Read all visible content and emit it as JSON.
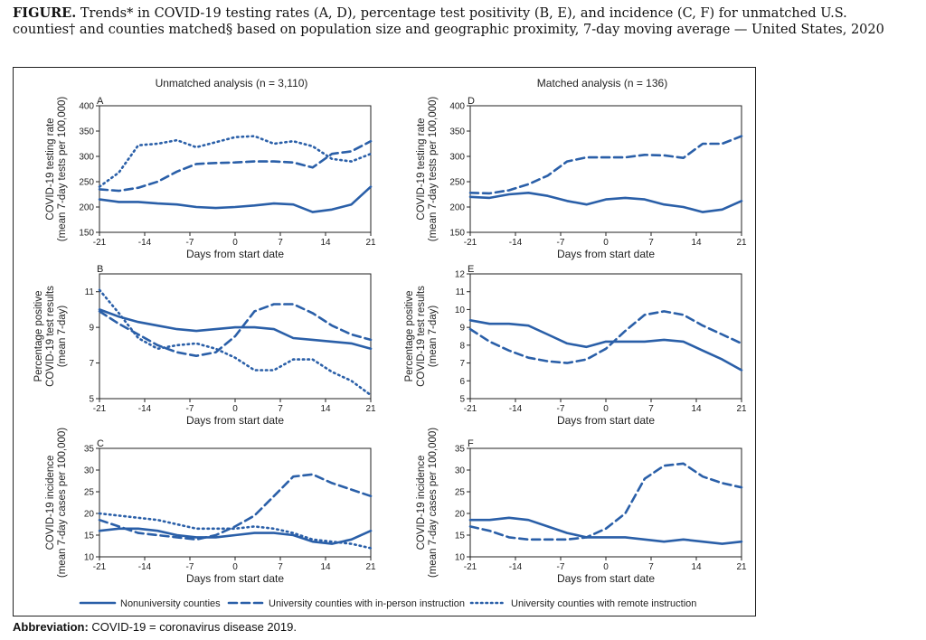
{
  "caption": {
    "lead": "FIGURE.",
    "text": "Trends* in COVID-19 testing rates (A, D), percentage test positivity (B, E), and incidence (C, F) for unmatched U.S. counties† and counties matched§ based on population size and geographic proximity, 7-day moving average — United States, 2020"
  },
  "footnote": {
    "label": "Abbreviation:",
    "text": "COVID-19 = coronavirus disease 2019."
  },
  "colors": {
    "line": "#2a5fa8",
    "axis": "#222222"
  },
  "column_titles": [
    "Unmatched analysis (n = 3,110)",
    "Matched analysis (n = 136)"
  ],
  "legend": [
    {
      "label": "Nonuniversity counties",
      "style": "solid"
    },
    {
      "label": "University counties with in-person instruction",
      "style": "dashed"
    },
    {
      "label": "University counties with remote instruction",
      "style": "dotted"
    }
  ],
  "chart_data": [
    {
      "panel": "A",
      "type": "line",
      "ylabel": [
        "COVID-19 testing rate",
        "(mean 7-day tests per 100,000)"
      ],
      "xlabel": "Days from start date",
      "xlim": [
        -21,
        21
      ],
      "xticks": [
        -21,
        -14,
        -7,
        0,
        7,
        14,
        21
      ],
      "ylim": [
        150,
        400
      ],
      "yticks": [
        150,
        200,
        250,
        300,
        350,
        400
      ],
      "x": [
        -21,
        -18,
        -15,
        -12,
        -9,
        -6,
        -3,
        0,
        3,
        6,
        9,
        12,
        15,
        18,
        21
      ],
      "series": [
        {
          "name": "Nonuniversity counties",
          "style": "solid",
          "values": [
            215,
            210,
            210,
            207,
            205,
            200,
            198,
            200,
            203,
            207,
            205,
            190,
            195,
            205,
            240
          ]
        },
        {
          "name": "University counties with in-person instruction",
          "style": "dashed",
          "values": [
            235,
            232,
            238,
            250,
            270,
            285,
            287,
            288,
            290,
            290,
            288,
            278,
            305,
            310,
            330
          ]
        },
        {
          "name": "University counties with remote instruction",
          "style": "dotted",
          "values": [
            240,
            268,
            322,
            325,
            332,
            318,
            328,
            338,
            340,
            325,
            330,
            320,
            295,
            290,
            305
          ]
        }
      ]
    },
    {
      "panel": "B",
      "type": "line",
      "ylabel": [
        "Percentage positive",
        "COVID-19 test results",
        "(mean 7-day)"
      ],
      "xlabel": "Days from start date",
      "xlim": [
        -21,
        21
      ],
      "xticks": [
        -21,
        -14,
        -7,
        0,
        7,
        14,
        21
      ],
      "ylim": [
        5,
        12
      ],
      "yticks": [
        5,
        7,
        9,
        11
      ],
      "x": [
        -21,
        -18,
        -15,
        -12,
        -9,
        -6,
        -3,
        0,
        3,
        6,
        9,
        12,
        15,
        18,
        21
      ],
      "series": [
        {
          "name": "Nonuniversity counties",
          "style": "solid",
          "values": [
            10.0,
            9.6,
            9.3,
            9.1,
            8.9,
            8.8,
            8.9,
            9.0,
            9.0,
            8.9,
            8.4,
            8.3,
            8.2,
            8.1,
            7.8
          ]
        },
        {
          "name": "University counties with in-person instruction",
          "style": "dashed",
          "values": [
            9.9,
            9.2,
            8.6,
            8.0,
            7.6,
            7.4,
            7.6,
            8.5,
            9.9,
            10.3,
            10.3,
            9.8,
            9.1,
            8.6,
            8.3
          ]
        },
        {
          "name": "University counties with remote instruction",
          "style": "dotted",
          "values": [
            11.1,
            9.8,
            8.4,
            7.8,
            8.0,
            8.1,
            7.8,
            7.3,
            6.6,
            6.6,
            7.2,
            7.2,
            6.5,
            6.0,
            5.2
          ]
        }
      ]
    },
    {
      "panel": "C",
      "type": "line",
      "ylabel": [
        "COVID-19 incidence",
        "(mean 7-day cases per 100,000)"
      ],
      "xlabel": "Days from start date",
      "xlim": [
        -21,
        21
      ],
      "xticks": [
        -21,
        -14,
        -7,
        0,
        7,
        14,
        21
      ],
      "ylim": [
        10,
        35
      ],
      "yticks": [
        10,
        15,
        20,
        25,
        30,
        35
      ],
      "x": [
        -21,
        -18,
        -15,
        -12,
        -9,
        -6,
        -3,
        0,
        3,
        6,
        9,
        12,
        15,
        18,
        21
      ],
      "series": [
        {
          "name": "Nonuniversity counties",
          "style": "solid",
          "values": [
            16,
            16.5,
            16.5,
            16,
            15,
            14.5,
            14.5,
            15,
            15.5,
            15.5,
            15,
            13.5,
            13,
            14,
            16
          ]
        },
        {
          "name": "University counties with in-person instruction",
          "style": "dashed",
          "values": [
            18.5,
            17,
            15.5,
            15,
            14.5,
            14,
            15,
            17,
            19.5,
            24,
            28.5,
            29,
            27,
            25.5,
            24
          ]
        },
        {
          "name": "University counties with remote instruction",
          "style": "dotted",
          "values": [
            20,
            19.5,
            19,
            18.5,
            17.5,
            16.5,
            16.5,
            16.5,
            17,
            16.5,
            15.5,
            14,
            13.5,
            13,
            12
          ]
        }
      ]
    },
    {
      "panel": "D",
      "type": "line",
      "ylabel": [
        "COVID-19 testing rate",
        "(mean 7-day tests per 100,000)"
      ],
      "xlabel": "Days from start date",
      "xlim": [
        -21,
        21
      ],
      "xticks": [
        -21,
        -14,
        -7,
        0,
        7,
        14,
        21
      ],
      "ylim": [
        150,
        400
      ],
      "yticks": [
        150,
        200,
        250,
        300,
        350,
        400
      ],
      "x": [
        -21,
        -18,
        -15,
        -12,
        -9,
        -6,
        -3,
        0,
        3,
        6,
        9,
        12,
        15,
        18,
        21
      ],
      "series": [
        {
          "name": "Nonuniversity counties",
          "style": "solid",
          "values": [
            220,
            218,
            225,
            228,
            222,
            212,
            205,
            215,
            218,
            215,
            205,
            200,
            190,
            195,
            212
          ]
        },
        {
          "name": "University counties with in-person instruction",
          "style": "dashed",
          "values": [
            228,
            227,
            233,
            245,
            262,
            290,
            298,
            298,
            298,
            303,
            302,
            297,
            325,
            325,
            340
          ]
        }
      ]
    },
    {
      "panel": "E",
      "type": "line",
      "ylabel": [
        "Percentage positive",
        "COVID-19 test results",
        "(mean 7-day)"
      ],
      "xlabel": "Days from start date",
      "xlim": [
        -21,
        21
      ],
      "xticks": [
        -21,
        -14,
        -7,
        0,
        7,
        14,
        21
      ],
      "ylim": [
        5,
        12
      ],
      "yticks": [
        5,
        6,
        7,
        8,
        9,
        10,
        11,
        12
      ],
      "x": [
        -21,
        -18,
        -15,
        -12,
        -9,
        -6,
        -3,
        0,
        3,
        6,
        9,
        12,
        15,
        18,
        21
      ],
      "series": [
        {
          "name": "Nonuniversity counties",
          "style": "solid",
          "values": [
            9.4,
            9.2,
            9.2,
            9.1,
            8.6,
            8.1,
            7.9,
            8.2,
            8.2,
            8.2,
            8.3,
            8.2,
            7.7,
            7.2,
            6.6
          ]
        },
        {
          "name": "University counties with in-person instruction",
          "style": "dashed",
          "values": [
            8.9,
            8.2,
            7.7,
            7.3,
            7.1,
            7.0,
            7.2,
            7.8,
            8.8,
            9.7,
            9.9,
            9.7,
            9.1,
            8.6,
            8.1
          ]
        }
      ]
    },
    {
      "panel": "F",
      "type": "line",
      "ylabel": [
        "COVID-19 incidence",
        "(mean 7-day cases per 100,000)"
      ],
      "xlabel": "Days from start date",
      "xlim": [
        -21,
        21
      ],
      "xticks": [
        -21,
        -14,
        -7,
        0,
        7,
        14,
        21
      ],
      "ylim": [
        10,
        35
      ],
      "yticks": [
        10,
        15,
        20,
        25,
        30,
        35
      ],
      "x": [
        -21,
        -18,
        -15,
        -12,
        -9,
        -6,
        -3,
        0,
        3,
        6,
        9,
        12,
        15,
        18,
        21
      ],
      "series": [
        {
          "name": "Nonuniversity counties",
          "style": "solid",
          "values": [
            18.5,
            18.5,
            19,
            18.5,
            17,
            15.5,
            14.5,
            14.5,
            14.5,
            14,
            13.5,
            14,
            13.5,
            13,
            13.5
          ]
        },
        {
          "name": "University counties with in-person instruction",
          "style": "dashed",
          "values": [
            17,
            16,
            14.5,
            14,
            14,
            14,
            14.5,
            16.5,
            20,
            28,
            31,
            31.5,
            28.5,
            27,
            26
          ]
        }
      ]
    }
  ]
}
